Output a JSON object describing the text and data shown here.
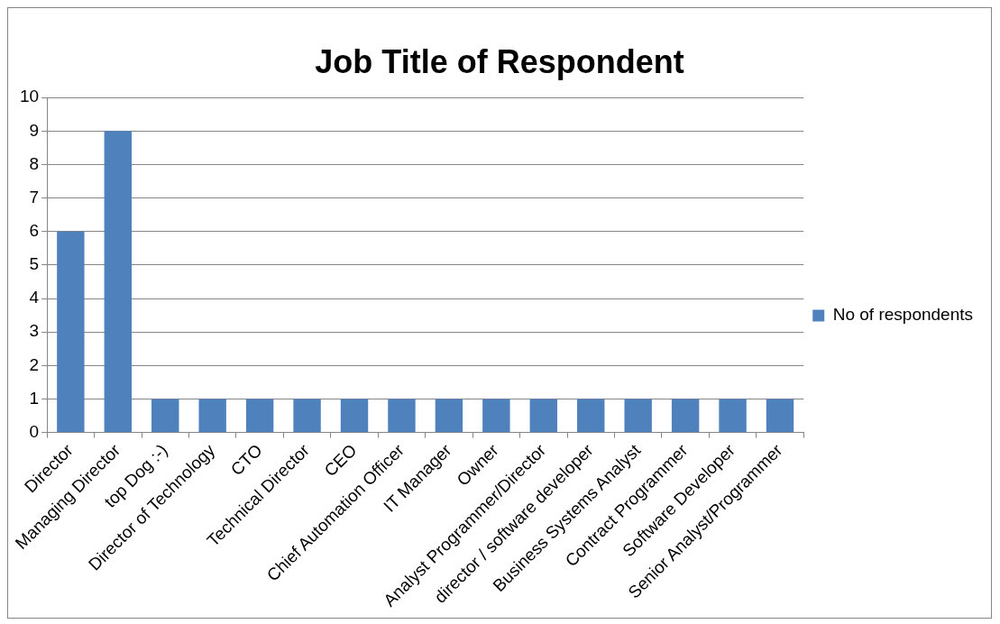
{
  "chart_data": {
    "type": "bar",
    "title": "Job Title of Respondent",
    "categories": [
      "Director",
      "Managing Director",
      "top Dog :-)",
      "Director of Technology",
      "CTO",
      "Technical Director",
      "CEO",
      "Chief Automation Officer",
      "IT Manager",
      "Owner",
      "Analyst Programmer/Director",
      "director / software developer",
      "Business Systems Analyst",
      "Contract Programmer",
      "Software Developer",
      "Senior Analyst/Programmer"
    ],
    "series": [
      {
        "name": "No of respondents",
        "color": "#4f81bd",
        "values": [
          6,
          9,
          1,
          1,
          1,
          1,
          1,
          1,
          1,
          1,
          1,
          1,
          1,
          1,
          1,
          1
        ]
      }
    ],
    "ylim": [
      0,
      10
    ],
    "yticks": [
      0,
      1,
      2,
      3,
      4,
      5,
      6,
      7,
      8,
      9,
      10
    ],
    "grid": "y",
    "legend": "right"
  }
}
